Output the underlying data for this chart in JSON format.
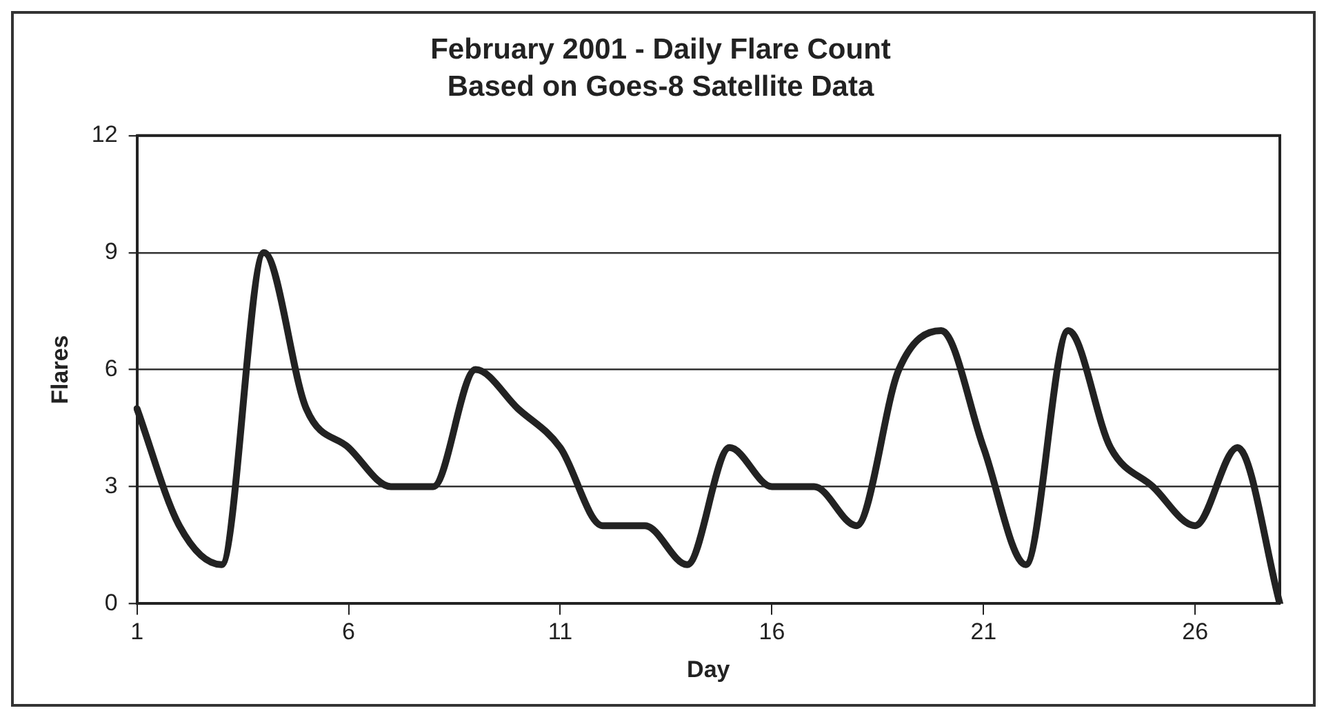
{
  "chart_data": {
    "type": "line",
    "title": "February 2001 - Daily Flare Count",
    "subtitle": "Based on Goes-8 Satellite Data",
    "xlabel": "Day",
    "ylabel": "Flares",
    "categories": [
      "1",
      null,
      null,
      null,
      null,
      "6",
      null,
      null,
      null,
      null,
      "11",
      null,
      null,
      null,
      null,
      "16",
      null,
      null,
      null,
      null,
      "21",
      null,
      null,
      null,
      null,
      "26",
      null,
      null
    ],
    "series": [
      {
        "color": "#222222",
        "values": [
          5,
          2,
          1,
          9,
          5,
          4,
          3,
          3,
          6,
          5,
          4,
          2,
          2,
          1,
          4,
          3,
          3,
          2,
          6,
          7,
          4,
          1,
          7,
          4,
          3,
          2,
          4,
          0
        ]
      }
    ],
    "ylim": [
      0,
      12
    ],
    "yticks": [
      0,
      3,
      6,
      9,
      12
    ],
    "grid": "y",
    "legend": false,
    "marker": "none",
    "line_style": "solid"
  }
}
